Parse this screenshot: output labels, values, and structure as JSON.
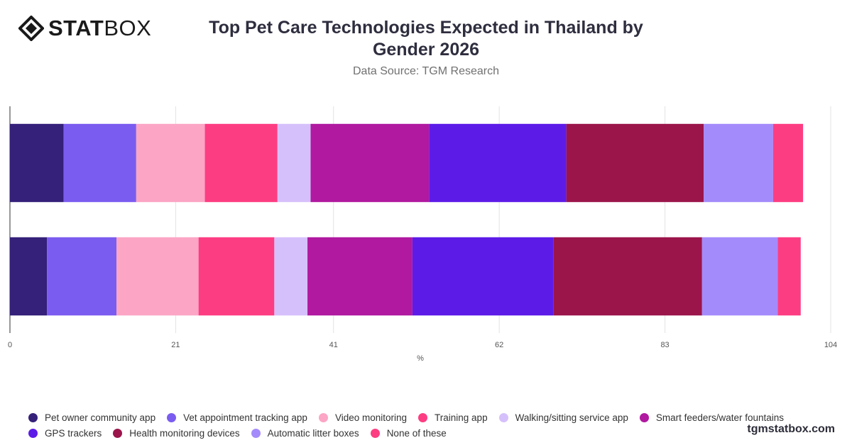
{
  "logo": {
    "bold": "STAT",
    "light": "BOX",
    "icon": "diamond-logo-icon"
  },
  "header": {
    "title": "Top Pet Care Technologies Expected in Thailand by Gender 2026",
    "subtitle": "Data Source: TGM Research"
  },
  "brand": "tgmstatbox.com",
  "chart_data": {
    "type": "bar",
    "orientation": "horizontal",
    "stacked": true,
    "xlabel": "%",
    "xlim": [
      0,
      104
    ],
    "xticks": [
      "0",
      "21",
      "41",
      "62",
      "83",
      "104"
    ],
    "grid": true,
    "legend_position": "bottom",
    "categories": [
      "",
      ""
    ],
    "series": [
      {
        "name": "Pet owner community app",
        "color": "#35207a",
        "values": [
          6.8,
          4.7
        ]
      },
      {
        "name": "Vet appointment tracking app",
        "color": "#7b5cf0",
        "values": [
          9.2,
          8.8
        ]
      },
      {
        "name": "Video monitoring",
        "color": "#fca5c5",
        "values": [
          8.7,
          10.4
        ]
      },
      {
        "name": "Training app",
        "color": "#fd3d82",
        "values": [
          9.2,
          9.6
        ]
      },
      {
        "name": "Walking/sitting service app",
        "color": "#d6c0fb",
        "values": [
          4.2,
          4.2
        ]
      },
      {
        "name": "Smart feeders/water fountains",
        "color": "#b019a0",
        "values": [
          15.0,
          13.3
        ]
      },
      {
        "name": "GPS trackers",
        "color": "#5d1be8",
        "values": [
          17.4,
          17.9
        ]
      },
      {
        "name": "Health monitoring devices",
        "color": "#9b154b",
        "values": [
          17.4,
          18.8
        ]
      },
      {
        "name": "Automatic litter boxes",
        "color": "#a48bfb",
        "values": [
          8.8,
          9.6
        ]
      },
      {
        "name": "None of these",
        "color": "#fd3d82",
        "values": [
          3.8,
          2.9
        ]
      }
    ]
  }
}
